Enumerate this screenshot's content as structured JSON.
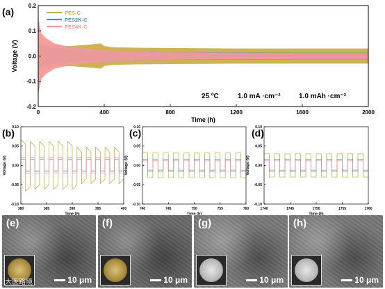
{
  "chart_data": [
    {
      "panel": "(a)",
      "type": "line",
      "xlabel": "Time (h)",
      "ylabel": "Voltage (V)",
      "xlim": [
        0,
        2000
      ],
      "ylim": [
        -0.2,
        0.2
      ],
      "xticks": [
        0,
        400,
        800,
        1200,
        1600,
        2000
      ],
      "yticks": [
        -0.2,
        -0.1,
        0.0,
        0.1,
        0.2
      ],
      "annotations": [
        "25 ºC",
        "1.0 mA ·cm⁻²",
        "1.0 mAh ·cm⁻²"
      ],
      "legend_position": "top-left",
      "series": [
        {
          "name": "PES-C",
          "color": "#c9ad4c",
          "envelope": {
            "t": [
              0,
              20,
              50,
              100,
              150,
              200,
              300,
              380,
              400,
              450,
              600,
              800,
              1000,
              1200,
              1600,
              2000
            ],
            "amplitude": [
              0.06,
              0.05,
              0.045,
              0.04,
              0.04,
              0.04,
              0.045,
              0.05,
              0.04,
              0.035,
              0.033,
              0.032,
              0.031,
              0.03,
              0.03,
              0.03
            ]
          }
        },
        {
          "name": "PES2K-C",
          "color": "#4d8fb7",
          "envelope": {
            "t": [
              0,
              20,
              50,
              100,
              200,
              400,
              600,
              800,
              1200,
              1600,
              2000
            ],
            "amplitude": [
              0.05,
              0.04,
              0.035,
              0.03,
              0.025,
              0.02,
              0.017,
              0.015,
              0.014,
              0.013,
              0.013
            ]
          }
        },
        {
          "name": "PES4K-C",
          "color": "#f29a9a",
          "envelope": {
            "t": [
              0,
              10,
              20,
              50,
              100,
              200,
              400,
              600,
              800,
              1200,
              1600,
              2000
            ],
            "amplitude": [
              0.15,
              0.12,
              0.09,
              0.07,
              0.05,
              0.035,
              0.022,
              0.017,
              0.015,
              0.013,
              0.012,
              0.012
            ]
          }
        }
      ]
    },
    {
      "panel": "(b)",
      "type": "line",
      "xlabel": "Time (h)",
      "ylabel": "Voltage (V)",
      "xlim": [
        380,
        400
      ],
      "ylim": [
        -0.1,
        0.1
      ],
      "xticks": [
        380,
        385,
        390,
        395,
        400
      ],
      "yticks": [
        -0.1,
        -0.05,
        0.0,
        0.05,
        0.1
      ],
      "series": [
        {
          "name": "PES-C",
          "color": "#c9ad4c",
          "amplitude": [
            0.055,
            0.05,
            0.05,
            0.05,
            0.05,
            0.05,
            0.035,
            0.035,
            0.035,
            0.035,
            0.035
          ]
        },
        {
          "name": "PES2K-C",
          "color": "#4d8fb7",
          "amplitude": [
            0.015,
            0.015,
            0.015,
            0.015,
            0.015,
            0.015,
            0.015,
            0.015,
            0.015,
            0.015,
            0.015
          ]
        },
        {
          "name": "PES4K-C",
          "color": "#f29a9a",
          "amplitude": [
            0.02,
            0.02,
            0.02,
            0.02,
            0.02,
            0.02,
            0.02,
            0.02,
            0.02,
            0.02,
            0.02
          ]
        }
      ]
    },
    {
      "panel": "(c)",
      "type": "line",
      "xlabel": "Time (h)",
      "ylabel": "Voltage (V)",
      "xlim": [
        740,
        760
      ],
      "ylim": [
        -0.1,
        0.1
      ],
      "xticks": [
        740,
        745,
        750,
        755,
        760
      ],
      "yticks": [
        -0.1,
        -0.05,
        0.0,
        0.05,
        0.1
      ],
      "series": [
        {
          "name": "PES-C",
          "color": "#c9ad4c",
          "amplitude": [
            0.032,
            0.032,
            0.032,
            0.032,
            0.032,
            0.032,
            0.032,
            0.032,
            0.032,
            0.032
          ]
        },
        {
          "name": "PES2K-C",
          "color": "#4d8fb7",
          "amplitude": [
            0.015,
            0.015,
            0.015,
            0.015,
            0.015,
            0.015,
            0.015,
            0.015,
            0.015,
            0.015
          ]
        },
        {
          "name": "PES4K-C",
          "color": "#f29a9a",
          "amplitude": [
            0.012,
            0.012,
            0.012,
            0.012,
            0.012,
            0.012,
            0.012,
            0.012,
            0.012,
            0.012
          ]
        }
      ]
    },
    {
      "panel": "(d)",
      "type": "line",
      "xlabel": "Time (h)",
      "ylabel": "Voltage (V)",
      "xlim": [
        1740,
        1760
      ],
      "ylim": [
        -0.1,
        0.1
      ],
      "xticks": [
        1740,
        1745,
        1750,
        1755,
        1760
      ],
      "yticks": [
        -0.1,
        -0.05,
        0.0,
        0.05,
        0.1
      ],
      "series": [
        {
          "name": "PES-C",
          "color": "#c9ad4c",
          "amplitude": [
            0.03,
            0.03,
            0.03,
            0.03,
            0.03,
            0.03,
            0.03,
            0.03,
            0.03,
            0.03
          ]
        },
        {
          "name": "PES2K-C",
          "color": "#4d8fb7",
          "amplitude": [
            0.015,
            0.015,
            0.015,
            0.015,
            0.015,
            0.015,
            0.015,
            0.015,
            0.015,
            0.015
          ]
        },
        {
          "name": "PES4K-C",
          "color": "#f29a9a",
          "amplitude": [
            0.012,
            0.012,
            0.012,
            0.012,
            0.012,
            0.012,
            0.012,
            0.012,
            0.012,
            0.012
          ]
        }
      ]
    }
  ],
  "images": [
    {
      "label": "(e)",
      "scale_bar": "10 μm",
      "tone": "#6f6f6f",
      "coin": "gold"
    },
    {
      "label": "(f)",
      "scale_bar": "10 μm",
      "tone": "#6a6a6a",
      "coin": "gold"
    },
    {
      "label": "(g)",
      "scale_bar": "10 μm",
      "tone": "#7c7c7c",
      "coin": "silver"
    },
    {
      "label": "(h)",
      "scale_bar": "10 μm",
      "tone": "#7a7a7a",
      "coin": "silver"
    }
  ],
  "watermark": "大医路境"
}
